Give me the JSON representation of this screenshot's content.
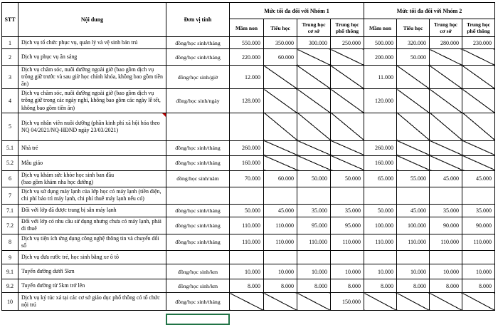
{
  "table": {
    "headers": {
      "stt": "STT",
      "content": "Nội dung",
      "unit": "Đơn vị tính",
      "group1": "Mức tối đa đối với Nhóm 1",
      "group2": "Mức tối đa đối với Nhóm 2"
    },
    "subheaders": [
      "Mầm non",
      "Tiểu học",
      "Trung học cơ sở",
      "Trung học phổ thông"
    ],
    "rows": [
      {
        "stt": "1",
        "content": "Dịch vụ tổ chức phục vụ, quản lý và vệ sinh bán trú",
        "unit": "đồng/học sinh/tháng",
        "cells": [
          "550.000",
          "350.000",
          "300.000",
          "250.000",
          "500.000",
          "320.000",
          "280.000",
          "230.000"
        ]
      },
      {
        "stt": "2",
        "content": "Dịch vụ phục vụ ăn sáng",
        "unit": "đồng/học sinh/tháng",
        "cells": [
          "220.000",
          "60.000",
          "na",
          "na",
          "200.000",
          "50.000",
          "na",
          "na"
        ]
      },
      {
        "stt": "3",
        "content": "Dịch vụ chăm sóc, nuôi dưỡng ngoài giờ (bao gồm dịch vụ trông giữ trước và sau giờ học chính khóa, không bao gồm tiền ăn)",
        "unit": "đồng/học sinh/giờ",
        "cells": [
          "12.000",
          "na",
          "na",
          "na",
          "11.000",
          "na",
          "na",
          "na"
        ]
      },
      {
        "stt": "4",
        "content": "Dịch vụ chăm sóc, nuôi dưỡng ngoài giờ (bao gồm dịch vụ trông giữ trong các ngày nghỉ, không bao gồm các ngày lễ tết, không bao gồm tiền ăn)",
        "unit": "đồng/học sinh/ngày",
        "cells": [
          "128.000",
          "na",
          "na",
          "na",
          "120.000",
          "na",
          "na",
          "na"
        ]
      },
      {
        "stt": "5",
        "content": "Dịch vụ nhân viên nuôi dưỡng (phần kinh phí xã hội hóa theo NQ 04/2021/NQ-HĐND ngày 23/03/2021)",
        "unit": "",
        "cells": [
          "",
          "na",
          "na",
          "na",
          "",
          "na",
          "na",
          "na"
        ],
        "comment": true
      },
      {
        "stt": "5.1",
        "content": "Nhà trẻ",
        "unit": "đồng/học sinh/tháng",
        "cells": [
          "260.000",
          "na",
          "na",
          "na",
          "260.000",
          "na",
          "na",
          "na"
        ]
      },
      {
        "stt": "5.2",
        "content": "Mẫu giáo",
        "unit": "đồng/học sinh/tháng",
        "cells": [
          "160.000",
          "na",
          "na",
          "na",
          "160.000",
          "na",
          "na",
          "na"
        ]
      },
      {
        "stt": "6",
        "content": "Dịch vụ khám sức khỏe học sinh ban đầu\n(bao gồm khám nha học đường)",
        "unit": "đồng/học sinh/năm",
        "cells": [
          "70.000",
          "60.000",
          "50.000",
          "50.000",
          "65.000",
          "55.000",
          "45.000",
          "45.000"
        ]
      },
      {
        "stt": "7",
        "content": "Dịch vụ sử dụng máy lạnh của lớp học có máy lạnh (tiền điện, chi phí bảo trì máy lạnh, chi phí thuê máy lạnh nếu có)",
        "unit": "",
        "cells": [
          "",
          "",
          "",
          "",
          "",
          "",
          "",
          ""
        ]
      },
      {
        "stt": "7.1",
        "content": "Đối với lớp đã được trang bị sẵn máy lạnh",
        "unit": "đồng/học sinh/tháng",
        "cells": [
          "50.000",
          "45.000",
          "35.000",
          "35.000",
          "50.000",
          "45.000",
          "35.000",
          "35.000"
        ]
      },
      {
        "stt": "7.2",
        "content": "Đối với lớp có nhu cầu sử dụng nhưng chưa có máy lạnh, phải đi thuê",
        "unit": "đồng/học sinh/tháng",
        "cells": [
          "110.000",
          "110.000",
          "95.000",
          "95.000",
          "100.000",
          "100.000",
          "90.000",
          "90.000"
        ]
      },
      {
        "stt": "8",
        "content": "Dịch vụ tiện ích ứng dụng công nghệ thông tin và chuyển đổi số",
        "unit": "đồng/học sinh/tháng",
        "cells": [
          "110.000",
          "110.000",
          "110.000",
          "110.000",
          "110.000",
          "110.000",
          "110.000",
          "110.000"
        ]
      },
      {
        "stt": "9",
        "content": "Dịch vụ đưa rước trẻ, học sinh bằng xe ô tô",
        "unit": "",
        "cells": [
          "",
          "",
          "",
          "",
          "",
          "",
          "",
          ""
        ]
      },
      {
        "stt": "9.1",
        "content": "Tuyến đường dưới 5km",
        "unit": "đồng/học sinh/km",
        "cells": [
          "10.000",
          "10.000",
          "10.000",
          "10.000",
          "10.000",
          "10.000",
          "10.000",
          "10.000"
        ]
      },
      {
        "stt": "9.2",
        "content": "Tuyến đường từ 5km trở lên",
        "unit": "đồng/học sinh/km",
        "cells": [
          "8.000",
          "8.000",
          "8.000",
          "8.000",
          "8.000",
          "8.000",
          "8.000",
          "8.000"
        ]
      },
      {
        "stt": "10",
        "content": "Dịch vụ ký túc xá tại các cơ sở giáo dục phổ thông có tổ chức nội trú",
        "unit": "đồng/học sinh/tháng",
        "cells": [
          "na",
          "na",
          "na",
          "150.000",
          "na",
          "na",
          "na",
          "na"
        ]
      }
    ]
  },
  "colors": {
    "selection_green": "#217346",
    "comment_red": "#c00000",
    "grid_black": "#000000"
  }
}
